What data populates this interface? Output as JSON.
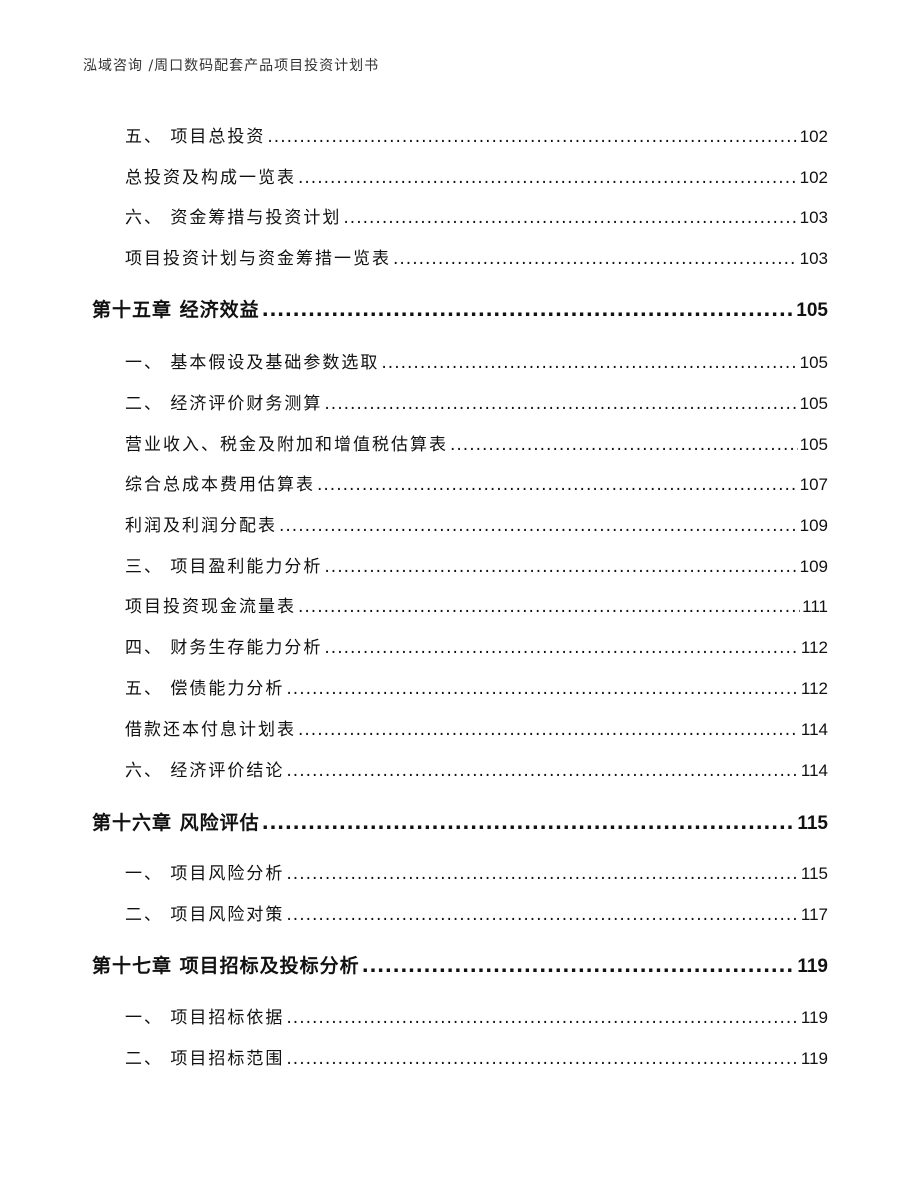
{
  "header": {
    "title": "泓域咨询 /周口数码配套产品项目投资计划书"
  },
  "toc": [
    {
      "label": "五、  项目总投资",
      "page": "102",
      "level": 2
    },
    {
      "label": "总投资及构成一览表",
      "page": "102",
      "level": 2
    },
    {
      "label": "六、  资金筹措与投资计划",
      "page": "103",
      "level": 2
    },
    {
      "label": "项目投资计划与资金筹措一览表",
      "page": "103",
      "level": 2
    },
    {
      "label": "第十五章 经济效益",
      "page": "105",
      "level": 1
    },
    {
      "label": "一、  基本假设及基础参数选取",
      "page": "105",
      "level": 2
    },
    {
      "label": "二、  经济评价财务测算",
      "page": "105",
      "level": 2
    },
    {
      "label": "营业收入、税金及附加和增值税估算表",
      "page": "105",
      "level": 2
    },
    {
      "label": "综合总成本费用估算表",
      "page": "107",
      "level": 2
    },
    {
      "label": "利润及利润分配表",
      "page": "109",
      "level": 2
    },
    {
      "label": "三、  项目盈利能力分析",
      "page": "109",
      "level": 2
    },
    {
      "label": "项目投资现金流量表",
      "page": "111",
      "level": 2
    },
    {
      "label": "四、  财务生存能力分析",
      "page": "112",
      "level": 2
    },
    {
      "label": "五、  偿债能力分析",
      "page": "112",
      "level": 2
    },
    {
      "label": "借款还本付息计划表",
      "page": "114",
      "level": 2
    },
    {
      "label": "六、  经济评价结论",
      "page": "114",
      "level": 2
    },
    {
      "label": "第十六章 风险评估",
      "page": "115",
      "level": 1
    },
    {
      "label": "一、  项目风险分析",
      "page": "115",
      "level": 2
    },
    {
      "label": "二、  项目风险对策",
      "page": "117",
      "level": 2
    },
    {
      "label": "第十七章 项目招标及投标分析",
      "page": "119",
      "level": 1
    },
    {
      "label": "一、  项目招标依据",
      "page": "119",
      "level": 2
    },
    {
      "label": "二、  项目招标范围",
      "page": "119",
      "level": 2
    }
  ]
}
